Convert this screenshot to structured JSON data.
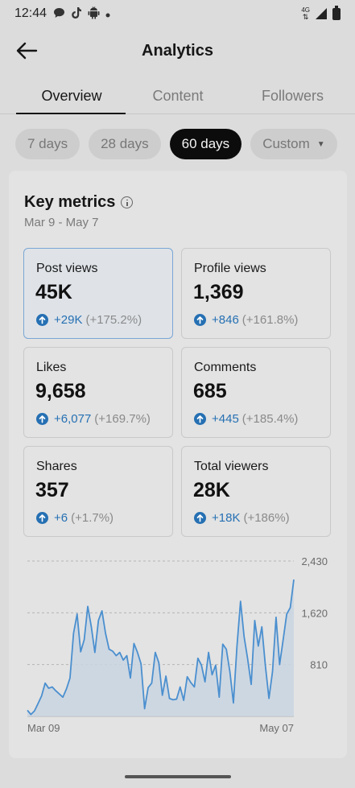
{
  "status_bar": {
    "time": "12:44",
    "left_icons": [
      "chat-bubble-icon",
      "tiktok-icon",
      "android-icon",
      "dot-icon"
    ],
    "right_icons": [
      "network-icon",
      "signal-icon",
      "battery-icon"
    ],
    "network_label": "4G"
  },
  "header": {
    "title": "Analytics",
    "back_icon": "arrow-left-icon"
  },
  "tabs": [
    {
      "label": "Overview",
      "active": true
    },
    {
      "label": "Content",
      "active": false
    },
    {
      "label": "Followers",
      "active": false
    }
  ],
  "chips": [
    {
      "label": "7 days",
      "active": false
    },
    {
      "label": "28 days",
      "active": false
    },
    {
      "label": "60 days",
      "active": true
    },
    {
      "label": "Custom",
      "active": false
    }
  ],
  "key_metrics": {
    "title": "Key metrics",
    "date_range": "Mar 9 - May 7",
    "metrics": [
      {
        "label": "Post views",
        "value": "45K",
        "delta": "+29K",
        "delta_pct": "(+175.2%)",
        "selected": true
      },
      {
        "label": "Profile views",
        "value": "1,369",
        "delta": "+846",
        "delta_pct": "(+161.8%)",
        "selected": false
      },
      {
        "label": "Likes",
        "value": "9,658",
        "delta": "+6,077",
        "delta_pct": "(+169.7%)",
        "selected": false
      },
      {
        "label": "Comments",
        "value": "685",
        "delta": "+445",
        "delta_pct": "(+185.4%)",
        "selected": false
      },
      {
        "label": "Shares",
        "value": "357",
        "delta": "+6",
        "delta_pct": "(+1.7%)",
        "selected": false
      },
      {
        "label": "Total viewers",
        "value": "28K",
        "delta": "+18K",
        "delta_pct": "(+186%)",
        "selected": false
      }
    ]
  },
  "colors": {
    "accent": "#2670b3",
    "line": "#4a8fcf",
    "fill": "#c9d5e2"
  },
  "chart_data": {
    "type": "area",
    "title": "",
    "xlabel": "",
    "ylabel": "",
    "x_tick_labels": [
      "Mar 09",
      "May 07"
    ],
    "y_tick_values": [
      810,
      1620,
      2430
    ],
    "y_tick_labels": [
      "810",
      "1,620",
      "2,430"
    ],
    "ylim": [
      0,
      2430
    ],
    "grid": true,
    "series": [
      {
        "values": [
          95,
          30,
          85,
          200,
          320,
          520,
          440,
          460,
          400,
          350,
          300,
          430,
          600,
          1300,
          1600,
          1010,
          1200,
          1720,
          1400,
          1000,
          1500,
          1650,
          1300,
          1050,
          1020,
          950,
          1000,
          880,
          950,
          600,
          1140,
          1000,
          820,
          120,
          450,
          520,
          1000,
          840,
          330,
          630,
          280,
          260,
          270,
          460,
          250,
          620,
          530,
          460,
          910,
          800,
          540,
          1000,
          650,
          800,
          300,
          1130,
          1050,
          700,
          210,
          1100,
          1800,
          1250,
          900,
          500,
          1500,
          1100,
          1400,
          790,
          280,
          700,
          1550,
          810,
          1200,
          1600,
          1700,
          2140
        ]
      }
    ]
  }
}
